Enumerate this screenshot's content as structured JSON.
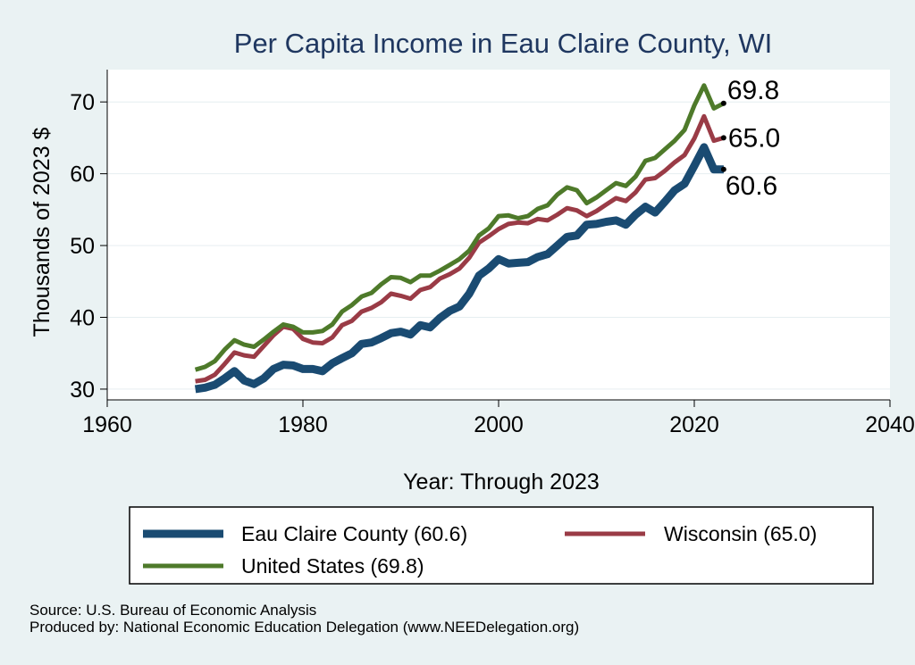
{
  "chart_data": {
    "type": "line",
    "title": "Per Capita Income in Eau Claire County, WI",
    "xlabel": "Year: Through 2023",
    "ylabel": "Thousands of 2023 $",
    "xlim": [
      1960,
      2040
    ],
    "ylim": [
      28.5,
      74.5
    ],
    "xticks": [
      1960,
      1980,
      2000,
      2020,
      2040
    ],
    "yticks": [
      30,
      40,
      50,
      60,
      70
    ],
    "colors": {
      "plot_bg": "#ffffff",
      "page_bg": "#eaf2f3",
      "title": "#1f3760",
      "grid": "#e6eef0"
    },
    "x": [
      1969,
      1970,
      1971,
      1972,
      1973,
      1974,
      1975,
      1976,
      1977,
      1978,
      1979,
      1980,
      1981,
      1982,
      1983,
      1984,
      1985,
      1986,
      1987,
      1988,
      1989,
      1990,
      1991,
      1992,
      1993,
      1994,
      1995,
      1996,
      1997,
      1998,
      1999,
      2000,
      2001,
      2002,
      2003,
      2004,
      2005,
      2006,
      2007,
      2008,
      2009,
      2010,
      2011,
      2012,
      2013,
      2014,
      2015,
      2016,
      2017,
      2018,
      2019,
      2020,
      2021,
      2022,
      2023
    ],
    "series": [
      {
        "name": "Eau Claire County",
        "legend": "Eau Claire County (60.6)",
        "end_label": "60.6",
        "color": "#1a4b72",
        "width": 9,
        "values": [
          30.0,
          30.2,
          30.6,
          31.5,
          32.5,
          31.2,
          30.7,
          31.5,
          32.8,
          33.4,
          33.3,
          32.8,
          32.8,
          32.5,
          33.6,
          34.3,
          35.0,
          36.3,
          36.5,
          37.1,
          37.8,
          38.0,
          37.6,
          38.9,
          38.6,
          39.9,
          40.9,
          41.5,
          43.3,
          45.8,
          46.8,
          48.1,
          47.5,
          47.6,
          47.7,
          48.4,
          48.8,
          50.0,
          51.2,
          51.4,
          52.9,
          53.0,
          53.3,
          53.5,
          52.9,
          54.3,
          55.4,
          54.6,
          56.1,
          57.7,
          58.6,
          61.1,
          63.7,
          60.6,
          60.6
        ]
      },
      {
        "name": "Wisconsin",
        "legend": "Wisconsin (65.0)",
        "end_label": "65.0",
        "color": "#9a3b46",
        "width": 5,
        "values": [
          31.1,
          31.3,
          32.0,
          33.5,
          35.1,
          34.7,
          34.5,
          36.0,
          37.5,
          38.7,
          38.4,
          37.0,
          36.5,
          36.4,
          37.2,
          38.9,
          39.5,
          40.8,
          41.3,
          42.1,
          43.3,
          43.0,
          42.6,
          43.8,
          44.2,
          45.4,
          46.0,
          46.8,
          48.3,
          50.4,
          51.3,
          52.3,
          53.0,
          53.2,
          53.1,
          53.7,
          53.5,
          54.3,
          55.2,
          54.9,
          54.1,
          54.8,
          55.7,
          56.6,
          56.2,
          57.4,
          59.2,
          59.4,
          60.4,
          61.6,
          62.6,
          64.9,
          68.0,
          64.6,
          65.0
        ]
      },
      {
        "name": "United States",
        "legend": "United States (69.8)",
        "end_label": "69.8",
        "color": "#4e7a2a",
        "width": 5,
        "values": [
          32.7,
          33.1,
          33.9,
          35.5,
          36.8,
          36.2,
          35.9,
          36.9,
          38.0,
          39.0,
          38.7,
          37.9,
          37.9,
          38.1,
          39.0,
          40.8,
          41.7,
          42.9,
          43.4,
          44.6,
          45.6,
          45.5,
          44.9,
          45.8,
          45.8,
          46.5,
          47.3,
          48.1,
          49.3,
          51.4,
          52.4,
          54.1,
          54.2,
          53.8,
          54.1,
          55.1,
          55.6,
          57.1,
          58.1,
          57.7,
          55.9,
          56.7,
          57.7,
          58.7,
          58.3,
          59.6,
          61.8,
          62.2,
          63.4,
          64.6,
          66.1,
          69.5,
          72.3,
          69.1,
          69.8
        ]
      }
    ],
    "legend_position": "bottom"
  },
  "source": {
    "line1": "Source: U.S. Bureau of Economic Analysis",
    "line2": "Produced by: National Economic Education Delegation (www.NEEDelegation.org)"
  }
}
